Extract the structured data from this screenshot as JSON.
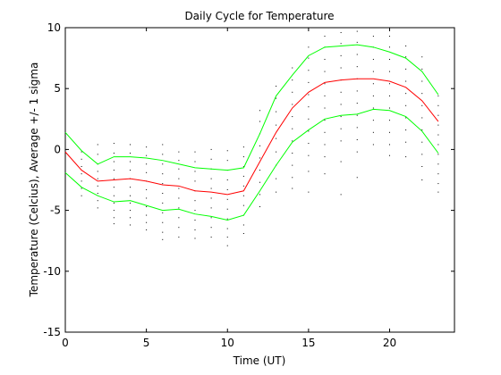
{
  "chart_data": {
    "type": "line",
    "title": "Daily Cycle for Temperature",
    "xlabel": "Time (UT)",
    "ylabel": "Temperature (Celcius), Average +/- 1 sigma",
    "xlim": [
      0,
      24
    ],
    "ylim": [
      -15,
      10
    ],
    "xticks": [
      0,
      5,
      10,
      15,
      20
    ],
    "yticks": [
      -15,
      -10,
      -5,
      0,
      5,
      10
    ],
    "grid": false,
    "x": [
      0,
      1,
      2,
      3,
      4,
      5,
      6,
      7,
      8,
      9,
      10,
      11,
      12,
      13,
      14,
      15,
      16,
      17,
      18,
      19,
      20,
      21,
      22,
      23
    ],
    "series": [
      {
        "role": "average",
        "color": "#ff0000",
        "values": [
          -0.2,
          -1.7,
          -2.6,
          -2.5,
          -2.4,
          -2.6,
          -2.9,
          -3.0,
          -3.4,
          -3.5,
          -3.7,
          -3.4,
          -1.0,
          1.4,
          3.4,
          4.7,
          5.5,
          5.7,
          5.8,
          5.8,
          5.6,
          5.1,
          4.0,
          2.3
        ]
      },
      {
        "role": "average + 1 sigma",
        "color": "#00ff00",
        "values": [
          1.4,
          -0.1,
          -1.2,
          -0.6,
          -0.6,
          -0.7,
          -0.9,
          -1.2,
          -1.5,
          -1.6,
          -1.7,
          -1.5,
          1.3,
          4.4,
          6.1,
          7.7,
          8.4,
          8.5,
          8.6,
          8.4,
          8.0,
          7.5,
          6.4,
          4.5
        ]
      },
      {
        "role": "average - 1 sigma",
        "color": "#00ff00",
        "values": [
          -1.9,
          -3.1,
          -3.8,
          -4.3,
          -4.2,
          -4.6,
          -5.0,
          -4.9,
          -5.3,
          -5.5,
          -5.8,
          -5.4,
          -3.4,
          -1.3,
          0.6,
          1.6,
          2.5,
          2.8,
          2.9,
          3.3,
          3.2,
          2.7,
          1.5,
          -0.3
        ]
      }
    ],
    "scatter": {
      "color": "#000000",
      "points": [
        [
          0,
          0.8
        ],
        [
          0,
          0.2
        ],
        [
          0,
          -0.4
        ],
        [
          0,
          -0.9
        ],
        [
          0,
          -1.5
        ],
        [
          0,
          -2.1
        ],
        [
          0,
          -2.6
        ],
        [
          1,
          -0.2
        ],
        [
          1,
          -0.8
        ],
        [
          1,
          -1.4
        ],
        [
          1,
          -2.0
        ],
        [
          1,
          -2.6
        ],
        [
          1,
          -3.2
        ],
        [
          1,
          -3.8
        ],
        [
          2,
          0.4
        ],
        [
          2,
          -0.4
        ],
        [
          2,
          -1.2
        ],
        [
          2,
          -1.8
        ],
        [
          2,
          -2.4
        ],
        [
          2,
          -3.0
        ],
        [
          2,
          -3.6
        ],
        [
          2,
          -4.2
        ],
        [
          2,
          -4.8
        ],
        [
          3,
          0.5
        ],
        [
          3,
          -0.3
        ],
        [
          3,
          -1.0
        ],
        [
          3,
          -1.7
        ],
        [
          3,
          -2.4
        ],
        [
          3,
          -3.1
        ],
        [
          3,
          -3.8
        ],
        [
          3,
          -4.4
        ],
        [
          3,
          -5.0
        ],
        [
          3,
          -5.6
        ],
        [
          3,
          -6.1
        ],
        [
          4,
          0.4
        ],
        [
          4,
          -0.3
        ],
        [
          4,
          -1.0
        ],
        [
          4,
          -1.7
        ],
        [
          4,
          -2.4
        ],
        [
          4,
          -3.1
        ],
        [
          4,
          -3.8
        ],
        [
          4,
          -4.4
        ],
        [
          4,
          -5.0
        ],
        [
          4,
          -5.6
        ],
        [
          4,
          -6.2
        ],
        [
          5,
          0.2
        ],
        [
          5,
          -0.5
        ],
        [
          5,
          -1.2
        ],
        [
          5,
          -1.9
        ],
        [
          5,
          -2.6
        ],
        [
          5,
          -3.3
        ],
        [
          5,
          -4.0
        ],
        [
          5,
          -4.7
        ],
        [
          5,
          -5.4
        ],
        [
          5,
          -6.0
        ],
        [
          5,
          -6.6
        ],
        [
          6,
          0.4
        ],
        [
          6,
          -0.4
        ],
        [
          6,
          -1.2
        ],
        [
          6,
          -2.0
        ],
        [
          6,
          -2.8
        ],
        [
          6,
          -3.6
        ],
        [
          6,
          -4.4
        ],
        [
          6,
          -5.2
        ],
        [
          6,
          -6.0
        ],
        [
          6,
          -6.8
        ],
        [
          6,
          -7.4
        ],
        [
          7,
          -0.2
        ],
        [
          7,
          -0.9
        ],
        [
          7,
          -1.6
        ],
        [
          7,
          -2.4
        ],
        [
          7,
          -3.2
        ],
        [
          7,
          -4.0
        ],
        [
          7,
          -4.8
        ],
        [
          7,
          -5.6
        ],
        [
          7,
          -6.4
        ],
        [
          7,
          -7.2
        ],
        [
          8,
          -0.2
        ],
        [
          8,
          -1.0
        ],
        [
          8,
          -1.8
        ],
        [
          8,
          -2.6
        ],
        [
          8,
          -3.4
        ],
        [
          8,
          -4.2
        ],
        [
          8,
          -5.0
        ],
        [
          8,
          -5.8
        ],
        [
          8,
          -6.6
        ],
        [
          8,
          -7.3
        ],
        [
          9,
          0.0
        ],
        [
          9,
          -0.8
        ],
        [
          9,
          -1.6
        ],
        [
          9,
          -2.4
        ],
        [
          9,
          -3.2
        ],
        [
          9,
          -4.0
        ],
        [
          9,
          -4.8
        ],
        [
          9,
          -5.6
        ],
        [
          9,
          -6.4
        ],
        [
          9,
          -7.2
        ],
        [
          10,
          -0.1
        ],
        [
          10,
          -0.9
        ],
        [
          10,
          -1.7
        ],
        [
          10,
          -2.5
        ],
        [
          10,
          -3.3
        ],
        [
          10,
          -4.1
        ],
        [
          10,
          -4.9
        ],
        [
          10,
          -5.7
        ],
        [
          10,
          -6.5
        ],
        [
          10,
          -7.2
        ],
        [
          10,
          -7.9
        ],
        [
          11,
          0.2
        ],
        [
          11,
          -0.6
        ],
        [
          11,
          -1.4
        ],
        [
          11,
          -2.2
        ],
        [
          11,
          -3.0
        ],
        [
          11,
          -3.8
        ],
        [
          11,
          -4.6
        ],
        [
          11,
          -5.4
        ],
        [
          11,
          -6.2
        ],
        [
          11,
          -6.9
        ],
        [
          12,
          3.2
        ],
        [
          12,
          2.3
        ],
        [
          12,
          1.3
        ],
        [
          12,
          0.3
        ],
        [
          12,
          -0.7
        ],
        [
          12,
          -1.7
        ],
        [
          12,
          -2.7
        ],
        [
          12,
          -3.7
        ],
        [
          12,
          -4.7
        ],
        [
          13,
          5.2
        ],
        [
          13,
          4.2
        ],
        [
          13,
          3.1
        ],
        [
          13,
          2.0
        ],
        [
          13,
          0.9
        ],
        [
          13,
          -0.2
        ],
        [
          13,
          -1.3
        ],
        [
          13,
          -2.4
        ],
        [
          13,
          -3.5
        ],
        [
          14,
          6.7
        ],
        [
          14,
          5.7
        ],
        [
          14,
          4.7
        ],
        [
          14,
          3.7
        ],
        [
          14,
          2.7
        ],
        [
          14,
          1.7
        ],
        [
          14,
          0.7
        ],
        [
          14,
          -0.3
        ],
        [
          14,
          -1.3
        ],
        [
          14,
          -2.3
        ],
        [
          14,
          -3.2
        ],
        [
          15,
          8.4
        ],
        [
          15,
          7.5
        ],
        [
          15,
          6.5
        ],
        [
          15,
          5.5
        ],
        [
          15,
          4.5
        ],
        [
          15,
          3.5
        ],
        [
          15,
          2.5
        ],
        [
          15,
          1.5
        ],
        [
          15,
          0.5
        ],
        [
          15,
          -0.5
        ],
        [
          15,
          -1.8
        ],
        [
          15,
          -3.5
        ],
        [
          16,
          9.3
        ],
        [
          16,
          8.4
        ],
        [
          16,
          7.4
        ],
        [
          16,
          6.4
        ],
        [
          16,
          5.4
        ],
        [
          16,
          4.4
        ],
        [
          16,
          3.4
        ],
        [
          16,
          2.4
        ],
        [
          16,
          1.4
        ],
        [
          16,
          0.4
        ],
        [
          16,
          -0.6
        ],
        [
          16,
          -2.0
        ],
        [
          17,
          9.6
        ],
        [
          17,
          8.7
        ],
        [
          17,
          7.7
        ],
        [
          17,
          6.7
        ],
        [
          17,
          5.7
        ],
        [
          17,
          4.7
        ],
        [
          17,
          3.7
        ],
        [
          17,
          2.7
        ],
        [
          17,
          1.7
        ],
        [
          17,
          0.7
        ],
        [
          17,
          -1.0
        ],
        [
          17,
          -3.7
        ],
        [
          18,
          9.7
        ],
        [
          18,
          8.8
        ],
        [
          18,
          7.8
        ],
        [
          18,
          6.8
        ],
        [
          18,
          5.8
        ],
        [
          18,
          4.8
        ],
        [
          18,
          3.8
        ],
        [
          18,
          2.8
        ],
        [
          18,
          1.8
        ],
        [
          18,
          0.8
        ],
        [
          18,
          -0.2
        ],
        [
          18,
          -2.3
        ],
        [
          19,
          9.3
        ],
        [
          19,
          8.4
        ],
        [
          19,
          7.4
        ],
        [
          19,
          6.4
        ],
        [
          19,
          5.4
        ],
        [
          19,
          4.4
        ],
        [
          19,
          3.4
        ],
        [
          19,
          2.4
        ],
        [
          19,
          1.4
        ],
        [
          19,
          0.4
        ],
        [
          20,
          9.3
        ],
        [
          20,
          8.4
        ],
        [
          20,
          7.4
        ],
        [
          20,
          6.4
        ],
        [
          20,
          5.4
        ],
        [
          20,
          4.4
        ],
        [
          20,
          3.4
        ],
        [
          20,
          2.4
        ],
        [
          20,
          1.4
        ],
        [
          20,
          0.4
        ],
        [
          20,
          -0.5
        ],
        [
          21,
          8.5
        ],
        [
          21,
          7.6
        ],
        [
          21,
          6.6
        ],
        [
          21,
          5.6
        ],
        [
          21,
          4.6
        ],
        [
          21,
          3.6
        ],
        [
          21,
          2.6
        ],
        [
          21,
          1.6
        ],
        [
          21,
          0.6
        ],
        [
          21,
          -0.6
        ],
        [
          22,
          7.6
        ],
        [
          22,
          6.6
        ],
        [
          22,
          5.6
        ],
        [
          22,
          4.6
        ],
        [
          22,
          3.6
        ],
        [
          22,
          2.6
        ],
        [
          22,
          1.6
        ],
        [
          22,
          0.6
        ],
        [
          22,
          -0.4
        ],
        [
          22,
          -1.4
        ],
        [
          22,
          -2.5
        ],
        [
          23,
          4.4
        ],
        [
          23,
          3.6
        ],
        [
          23,
          2.8
        ],
        [
          23,
          2.0
        ],
        [
          23,
          1.2
        ],
        [
          23,
          0.4
        ],
        [
          23,
          -0.4
        ],
        [
          23,
          -1.2
        ],
        [
          23,
          -2.0
        ],
        [
          23,
          -2.8
        ],
        [
          23,
          -3.5
        ]
      ]
    }
  }
}
